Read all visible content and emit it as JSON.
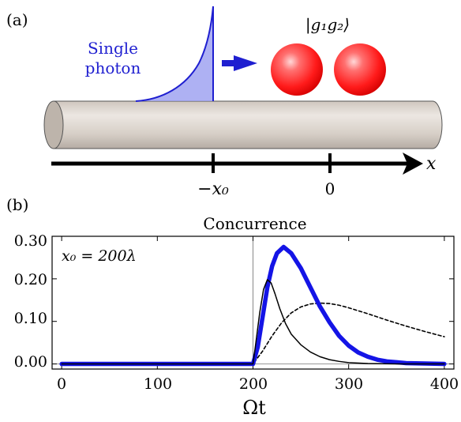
{
  "panel_a": {
    "label": "(a)",
    "photon_label_line1": "Single",
    "photon_label_line2": "photon",
    "state_label": "|g₁g₂⟩",
    "axis_var": "x",
    "tick_neg": "−x₀",
    "tick_zero": "0",
    "colors": {
      "photon": "#1f1fd0",
      "photon_fill": "#9a9ef0",
      "atom": "#ff2a2a",
      "waveguide": "#d8d2cc"
    }
  },
  "panel_b": {
    "label": "(b)",
    "annotation": "x₀ = 200λ"
  },
  "chart_data": {
    "type": "line",
    "title": "Concurrence",
    "xlabel": "Ωt",
    "ylabel": "",
    "xlim": [
      -10,
      410
    ],
    "ylim": [
      -0.012,
      0.3
    ],
    "xticks": [
      "0",
      "100",
      "200",
      "300",
      "400"
    ],
    "yticks": [
      "0.00",
      "0.10",
      "0.20",
      "0.30"
    ],
    "vline_x": 200,
    "series": [
      {
        "style": "thick-blue",
        "color": "#1414e6",
        "x": [
          0,
          100,
          199,
          200,
          205,
          210,
          215,
          220,
          225,
          232,
          240,
          250,
          260,
          270,
          280,
          290,
          300,
          310,
          320,
          330,
          340,
          350,
          360,
          380,
          400
        ],
        "y": [
          0,
          0,
          0,
          0,
          0.04,
          0.11,
          0.18,
          0.23,
          0.26,
          0.275,
          0.26,
          0.225,
          0.18,
          0.135,
          0.098,
          0.066,
          0.043,
          0.027,
          0.017,
          0.01,
          0.006,
          0.004,
          0.002,
          0.001,
          0.0
        ]
      },
      {
        "style": "thin-black",
        "color": "#000000",
        "x": [
          0,
          100,
          199,
          200,
          203,
          207,
          211,
          215,
          219,
          223,
          228,
          234,
          240,
          250,
          260,
          270,
          280,
          290,
          300,
          320,
          350,
          400
        ],
        "y": [
          0,
          0,
          0,
          0,
          0.05,
          0.12,
          0.175,
          0.198,
          0.19,
          0.165,
          0.13,
          0.095,
          0.07,
          0.045,
          0.028,
          0.017,
          0.01,
          0.006,
          0.003,
          0.001,
          0.0,
          0.0
        ]
      },
      {
        "style": "dashed-black",
        "color": "#000000",
        "x": [
          0,
          100,
          199,
          200,
          210,
          220,
          230,
          240,
          250,
          260,
          270,
          280,
          290,
          300,
          320,
          340,
          360,
          380,
          400
        ],
        "y": [
          0,
          0,
          0,
          0,
          0.03,
          0.066,
          0.097,
          0.12,
          0.134,
          0.141,
          0.143,
          0.142,
          0.138,
          0.132,
          0.118,
          0.103,
          0.089,
          0.076,
          0.064
        ]
      }
    ]
  }
}
